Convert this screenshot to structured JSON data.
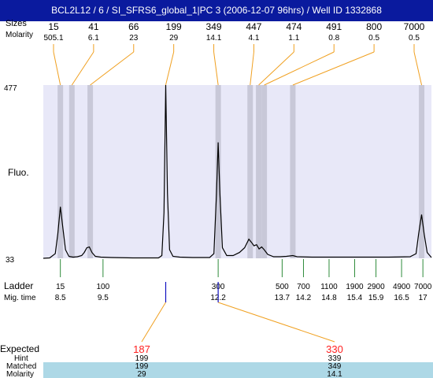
{
  "title": "BCL2L12 / 6 / SI_SFRS6_global_1|PC 3 (2006-12-07 96hrs) / Well ID 1332868",
  "labels": {
    "sizes": "Sizes",
    "molarity_top": "Molarity",
    "ymax": "477",
    "ymin": "33",
    "fluo": "Fluo.",
    "ladder": "Ladder",
    "migtime": "Mig. time",
    "expected": "Expected",
    "hint": "Hint",
    "matched": "Matched",
    "molarity_bottom": "Molarity"
  },
  "colors": {
    "title_bg": "#0a1a9e",
    "plot_bg": "#e8e8f8",
    "band": "#c8c8d8",
    "peak_connector": "#f0a020",
    "ladder_tick": "#2e8b3a",
    "marker_tick": "#1010c0",
    "expected": "#ff2020",
    "table_row": "#add8e6"
  },
  "chart_data": {
    "type": "line",
    "xlabel": "",
    "ylabel": "Fluo.",
    "ylim": [
      33,
      477
    ],
    "xlim": [
      8.1,
      17.2
    ],
    "peaks_table": [
      {
        "size": "15",
        "molarity": "505.1",
        "time": 8.5
      },
      {
        "size": "41",
        "molarity": "6.1",
        "time": 8.77
      },
      {
        "size": "66",
        "molarity": "23",
        "time": 9.2
      },
      {
        "size": "199",
        "molarity": "29",
        "time": 10.97
      },
      {
        "size": "349",
        "molarity": "14.1",
        "time": 12.2
      },
      {
        "size": "447",
        "molarity": "4.1",
        "time": 12.95
      },
      {
        "size": "474",
        "molarity": "1.1",
        "time": 13.15
      },
      {
        "size": "491",
        "molarity": "0.8",
        "time": 13.28
      },
      {
        "size": "800",
        "molarity": "0.5",
        "time": 13.95
      },
      {
        "size": "7000",
        "molarity": "0.5",
        "time": 16.97
      }
    ],
    "ladder": [
      {
        "size": "15",
        "time": "8.5",
        "t": 8.5
      },
      {
        "size": "100",
        "time": "9.5",
        "t": 9.5
      },
      {
        "size": "300",
        "time": "12.2",
        "t": 12.2
      },
      {
        "size": "500",
        "time": "13.7",
        "t": 13.7
      },
      {
        "size": "700",
        "time": "14.2",
        "t": 14.2
      },
      {
        "size": "1100",
        "time": "14.8",
        "t": 14.8
      },
      {
        "size": "1900",
        "time": "15.4",
        "t": 15.4
      },
      {
        "size": "2900",
        "time": "15.9",
        "t": 15.9
      },
      {
        "size": "4900",
        "time": "16.5",
        "t": 16.5
      },
      {
        "size": "7000",
        "time": "17",
        "t": 17.0
      }
    ],
    "markers": [
      10.97,
      12.2
    ],
    "expected": [
      {
        "expected": "187",
        "hint": "199",
        "matched": "199",
        "molarity": "29",
        "t": 10.97
      },
      {
        "expected": "330",
        "hint": "339",
        "matched": "349",
        "molarity": "14.1",
        "t": 12.2
      }
    ],
    "trace": [
      [
        8.1,
        33
      ],
      [
        8.25,
        34
      ],
      [
        8.38,
        45
      ],
      [
        8.44,
        95
      ],
      [
        8.5,
        165
      ],
      [
        8.56,
        110
      ],
      [
        8.62,
        55
      ],
      [
        8.7,
        38
      ],
      [
        8.8,
        36
      ],
      [
        8.9,
        37
      ],
      [
        9.0,
        40
      ],
      [
        9.06,
        48
      ],
      [
        9.12,
        60
      ],
      [
        9.18,
        62
      ],
      [
        9.24,
        48
      ],
      [
        9.32,
        38
      ],
      [
        9.45,
        36
      ],
      [
        9.7,
        35
      ],
      [
        10.2,
        34
      ],
      [
        10.8,
        34
      ],
      [
        10.88,
        40
      ],
      [
        10.93,
        150
      ],
      [
        10.97,
        477
      ],
      [
        11.01,
        200
      ],
      [
        11.06,
        55
      ],
      [
        11.14,
        38
      ],
      [
        11.3,
        36
      ],
      [
        11.6,
        35
      ],
      [
        12.0,
        35
      ],
      [
        12.1,
        45
      ],
      [
        12.16,
        200
      ],
      [
        12.2,
        330
      ],
      [
        12.24,
        200
      ],
      [
        12.3,
        60
      ],
      [
        12.4,
        40
      ],
      [
        12.55,
        40
      ],
      [
        12.7,
        48
      ],
      [
        12.82,
        60
      ],
      [
        12.92,
        82
      ],
      [
        12.98,
        74
      ],
      [
        13.04,
        65
      ],
      [
        13.1,
        68
      ],
      [
        13.16,
        57
      ],
      [
        13.22,
        62
      ],
      [
        13.28,
        55
      ],
      [
        13.36,
        43
      ],
      [
        13.5,
        37
      ],
      [
        13.65,
        37
      ],
      [
        13.8,
        38
      ],
      [
        13.88,
        39
      ],
      [
        13.95,
        40
      ],
      [
        14.05,
        37
      ],
      [
        14.4,
        36
      ],
      [
        15.0,
        36
      ],
      [
        15.6,
        36
      ],
      [
        16.2,
        36
      ],
      [
        16.7,
        37
      ],
      [
        16.84,
        45
      ],
      [
        16.9,
        95
      ],
      [
        16.97,
        145
      ],
      [
        17.03,
        95
      ],
      [
        17.1,
        48
      ],
      [
        17.2,
        35
      ]
    ]
  }
}
